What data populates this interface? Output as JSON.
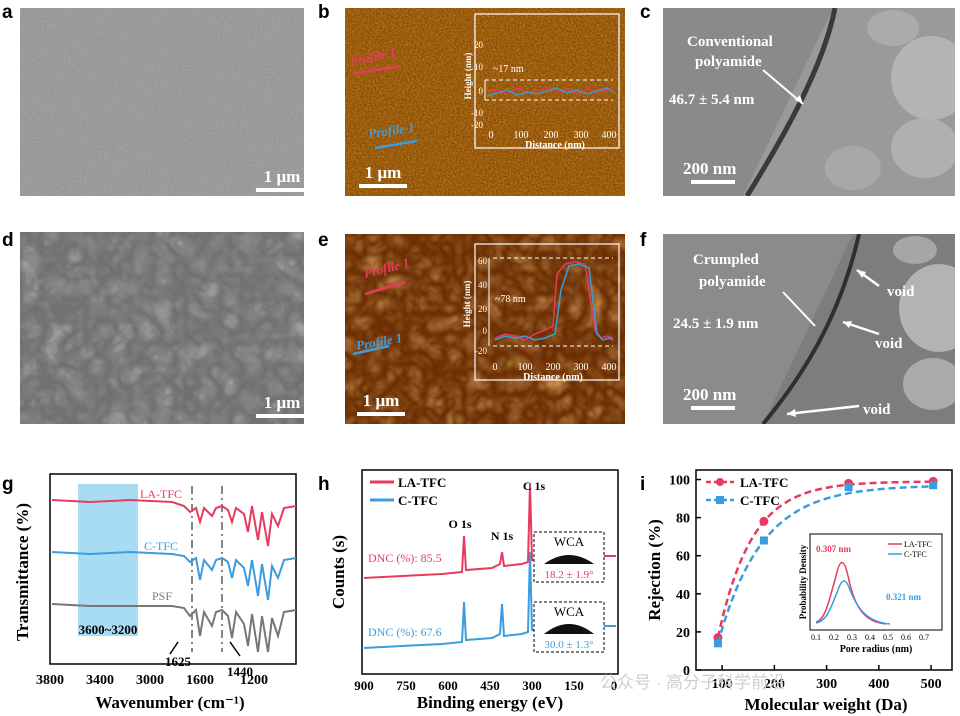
{
  "panels": {
    "a": {
      "letter": "a",
      "scalebar": "1 μm"
    },
    "b": {
      "letter": "b",
      "scalebar": "1 μm",
      "profile_red": "Profile 1",
      "profile_blue": "Profile 1",
      "inset": {
        "ylabel": "Height (nm)",
        "xlabel": "Distance (nm)",
        "annotation": "~17 nm",
        "xticks": [
          "0",
          "100",
          "200",
          "300",
          "400"
        ],
        "yticks": [
          "20",
          "10",
          "0",
          "-10",
          "-20"
        ]
      }
    },
    "c": {
      "letter": "c",
      "scalebar": "200 nm",
      "label1": "Conventional",
      "label2": "polyamide",
      "thickness": "46.7 ± 5.4 nm"
    },
    "d": {
      "letter": "d",
      "scalebar": "1 μm"
    },
    "e": {
      "letter": "e",
      "scalebar": "1 μm",
      "profile_red": "Profile 1",
      "profile_blue": "Profile 1",
      "inset": {
        "ylabel": "Height (nm)",
        "xlabel": "Distance (nm)",
        "annotation": "~78 nm",
        "xticks": [
          "0",
          "100",
          "200",
          "300",
          "400"
        ],
        "yticks": [
          "60",
          "40",
          "20",
          "0",
          "-20"
        ]
      }
    },
    "f": {
      "letter": "f",
      "scalebar": "200 nm",
      "label1": "Crumpled",
      "label2": "polyamide",
      "thickness": "24.5 ± 1.9 nm",
      "void1": "void",
      "void2": "void",
      "void3": "void"
    },
    "g": {
      "letter": "g",
      "ylabel": "Transmittance (%)",
      "xlabel": "Wavenumber (cm⁻¹)",
      "series": [
        "LA-TFC",
        "C-TFC",
        "PSF"
      ],
      "band": "3600~3200",
      "peak1": "1625",
      "peak2": "1440",
      "xticks": [
        "3800",
        "3400",
        "3000",
        "1600",
        "1200"
      ]
    },
    "h": {
      "letter": "h",
      "ylabel": "Counts (s)",
      "xlabel": "Binding energy (eV)",
      "legend": [
        "LA-TFC",
        "C-TFC"
      ],
      "o1s": "O 1s",
      "n1s": "N 1s",
      "c1s": "C 1s",
      "dnc_red": "DNC (%): 85.5",
      "dnc_blue": "DNC (%): 67.6",
      "wca_label": "WCA",
      "wca_red": "18.2 ± 1.9°",
      "wca_blue": "30.0 ± 1.3°",
      "xticks": [
        "900",
        "750",
        "600",
        "450",
        "300",
        "150",
        "0"
      ]
    },
    "i": {
      "letter": "i",
      "ylabel": "Rejection (%)",
      "xlabel": "Molecular weight (Da)",
      "legend": [
        "LA-TFC",
        "C-TFC"
      ],
      "yticks": [
        "0",
        "20",
        "40",
        "60",
        "80",
        "100"
      ],
      "xticks": [
        "100",
        "200",
        "300",
        "400",
        "500"
      ],
      "inset": {
        "ylabel": "Probability Density",
        "xlabel": "Pore radius (nm)",
        "legend": [
          "LA-TFC",
          "C-TFC"
        ],
        "peak_red": "0.307 nm",
        "peak_blue": "0.321 nm",
        "xticks": [
          "0.1",
          "0.2",
          "0.3",
          "0.4",
          "0.5",
          "0.6",
          "0.7"
        ]
      }
    }
  },
  "chart_data": [
    {
      "type": "line",
      "panel": "i",
      "xlabel": "Molecular weight (Da)",
      "ylabel": "Rejection (%)",
      "xlim": [
        50,
        540
      ],
      "ylim": [
        0,
        105
      ],
      "series": [
        {
          "name": "LA-TFC",
          "color": "#e83a5e",
          "x": [
            92,
            180,
            342,
            504
          ],
          "y": [
            17,
            78,
            98,
            99
          ]
        },
        {
          "name": "C-TFC",
          "color": "#3b9ddd",
          "x": [
            92,
            180,
            342,
            504
          ],
          "y": [
            14,
            68,
            96,
            97
          ]
        }
      ]
    },
    {
      "type": "line",
      "panel": "h",
      "xlabel": "Binding energy (eV)",
      "ylabel": "Counts (s)",
      "series": [
        {
          "name": "LA-TFC",
          "color": "#e83a5e"
        },
        {
          "name": "C-TFC",
          "color": "#3b9ddd"
        }
      ]
    },
    {
      "type": "line",
      "panel": "g",
      "xlabel": "Wavenumber (cm⁻¹)",
      "ylabel": "Transmittance (%)",
      "series": [
        {
          "name": "LA-TFC",
          "color": "#e83a5e"
        },
        {
          "name": "C-TFC",
          "color": "#3b9ddd"
        },
        {
          "name": "PSF",
          "color": "#777777"
        }
      ]
    }
  ],
  "watermark": "公众号 · 高分子科学前沿"
}
